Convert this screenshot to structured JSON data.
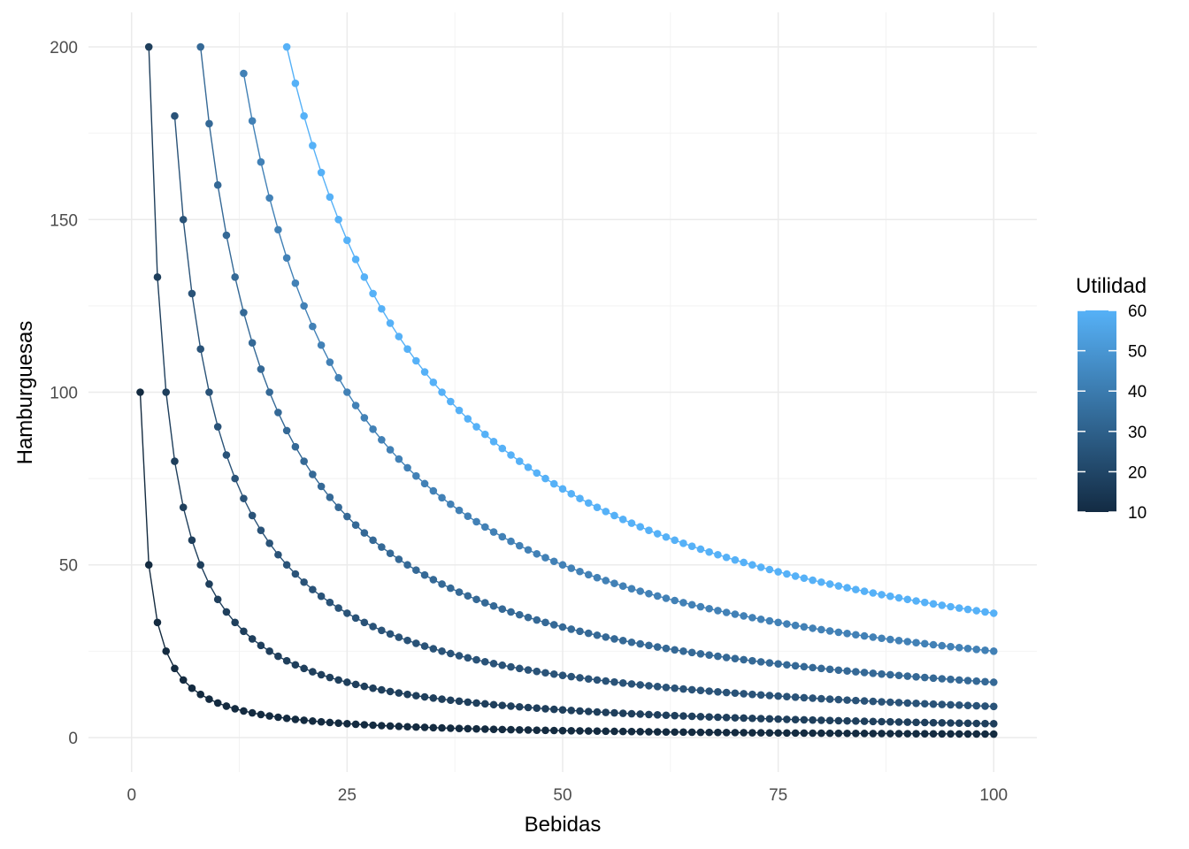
{
  "chart_data": {
    "type": "line",
    "title": "",
    "xlabel": "Bebidas",
    "ylabel": "Hamburguesas",
    "xlim": [
      -5,
      105
    ],
    "ylim": [
      -10,
      210
    ],
    "x_ticks": [
      0,
      25,
      50,
      75,
      100
    ],
    "x_tick_labels": [
      "0",
      "25",
      "50",
      "75",
      "100"
    ],
    "y_ticks": [
      0,
      50,
      100,
      150,
      200
    ],
    "y_tick_labels": [
      "0",
      "50",
      "100",
      "150",
      "200"
    ],
    "grid": true,
    "markers": true,
    "series": [
      {
        "utility": 10,
        "x_start": 1,
        "x_end": 100,
        "x_step": 1,
        "formula": "y = 100 / x",
        "color": "#142b40"
      },
      {
        "utility": 20,
        "x_start": 2,
        "x_end": 100,
        "x_step": 1,
        "formula": "y = 400 / x",
        "color": "#1f3f5c"
      },
      {
        "utility": 30,
        "x_start": 5,
        "x_end": 100,
        "x_step": 1,
        "formula": "y = 900 / x",
        "color": "#2a5378"
      },
      {
        "utility": 40,
        "x_start": 8,
        "x_end": 100,
        "x_step": 1,
        "formula": "y = 1600 / x",
        "color": "#356996"
      },
      {
        "utility": 50,
        "x_start": 13,
        "x_end": 100,
        "x_step": 1,
        "formula": "y = 2500 / x",
        "color": "#4281b6"
      },
      {
        "utility": 60,
        "x_start": 18,
        "x_end": 100,
        "x_step": 1,
        "formula": "y = 3600 / x",
        "color": "#56b1f7"
      }
    ],
    "legend": {
      "title": "Utilidad",
      "position": "right",
      "type": "colorbar",
      "breaks": [
        10,
        20,
        30,
        40,
        50,
        60
      ],
      "labels": [
        "10",
        "20",
        "30",
        "40",
        "50",
        "60"
      ],
      "low_color": "#132b43",
      "high_color": "#56b1f7",
      "range": [
        10,
        60
      ]
    }
  }
}
